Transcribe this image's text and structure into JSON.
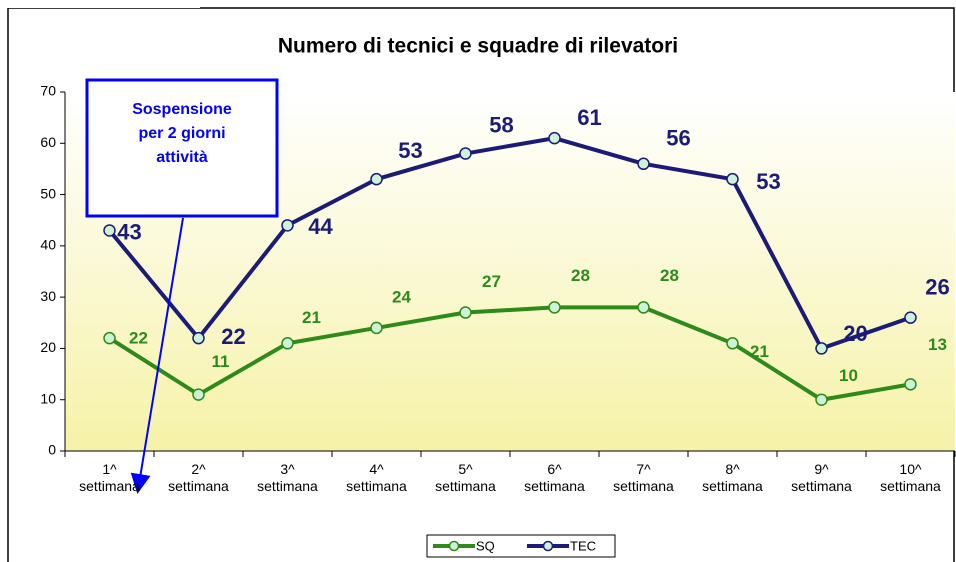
{
  "chart_data": {
    "type": "line",
    "title": "Numero di tecnici e squadre di rilevatori",
    "categories": [
      "1^ settimana",
      "2^ settimana",
      "3^ settimana",
      "4^ settimana",
      "5^ settimana",
      "6^ settimana",
      "7^ settimana",
      "8^ settimana",
      "9^ settimana",
      "10^ settimana"
    ],
    "series": [
      {
        "name": "SQ",
        "color": "#2e8b1a",
        "values": [
          22,
          11,
          21,
          24,
          27,
          28,
          28,
          21,
          10,
          13
        ]
      },
      {
        "name": "TEC",
        "color": "#1c1c78",
        "values": [
          43,
          22,
          44,
          53,
          58,
          61,
          56,
          53,
          20,
          26
        ]
      }
    ],
    "ylim": [
      0,
      70
    ],
    "yticks": [
      0,
      10,
      20,
      30,
      40,
      50,
      60,
      70
    ],
    "annotation": [
      "Sospensione",
      "per 2 giorni",
      "attività"
    ],
    "legend": "bottom"
  }
}
